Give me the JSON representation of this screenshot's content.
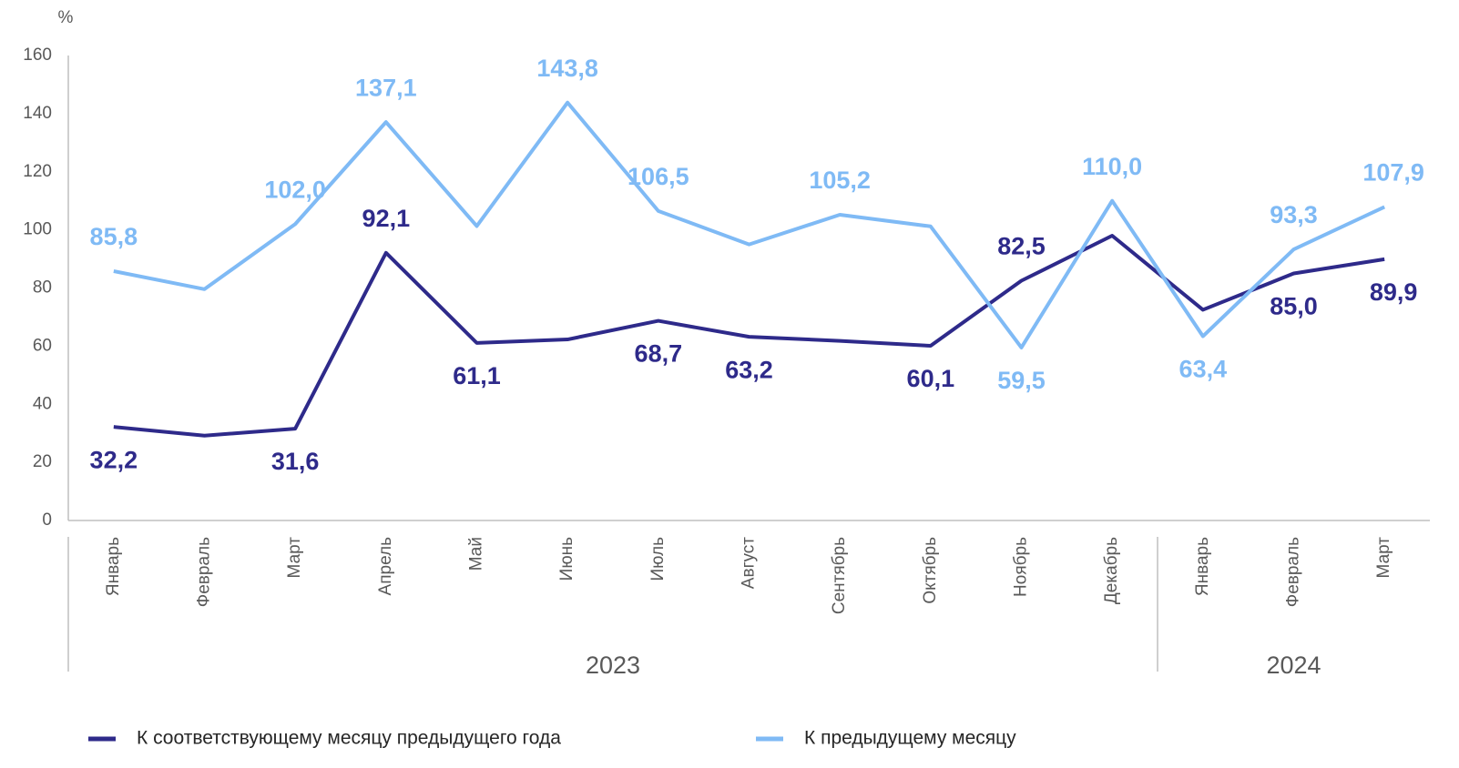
{
  "chart_data": {
    "type": "line",
    "y_unit": "%",
    "categories": [
      "Январь",
      "Февраль",
      "Март",
      "Апрель",
      "Май",
      "Июнь",
      "Июль",
      "Август",
      "Сентябрь",
      "Октябрь",
      "Ноябрь",
      "Декабрь",
      "Январь",
      "Февраль",
      "Март"
    ],
    "groups": [
      {
        "label": "2023",
        "span": 12
      },
      {
        "label": "2024",
        "span": 3
      }
    ],
    "ylim": [
      0,
      160
    ],
    "yticks": [
      0,
      20,
      40,
      60,
      80,
      100,
      120,
      140,
      160
    ],
    "series": [
      {
        "name": "К соответствующему месяцу предыдущего года",
        "color": "#2e2a8a",
        "values": [
          32.2,
          29.2,
          31.6,
          92.1,
          61.1,
          62.3,
          68.7,
          63.2,
          61.8,
          60.1,
          82.5,
          98.0,
          72.5,
          85.0,
          89.9
        ],
        "value_labels": [
          "32,2",
          null,
          "31,6",
          "92,1",
          "61,1",
          null,
          "68,7",
          "63,2",
          null,
          "60,1",
          "82,5",
          null,
          null,
          "85,0",
          "89,9"
        ]
      },
      {
        "name": "К предыдущему месяцу",
        "color": "#7fbaf5",
        "values": [
          85.8,
          79.6,
          102.0,
          137.1,
          101.3,
          143.8,
          106.5,
          95.0,
          105.2,
          101.2,
          59.5,
          110.0,
          63.4,
          93.3,
          107.9
        ],
        "value_labels": [
          "85,8",
          null,
          "102,0",
          "137,1",
          null,
          "143,8",
          "106,5",
          null,
          "105,2",
          null,
          "59,5",
          "110,0",
          "63,4",
          "93,3",
          "107,9"
        ]
      }
    ]
  }
}
